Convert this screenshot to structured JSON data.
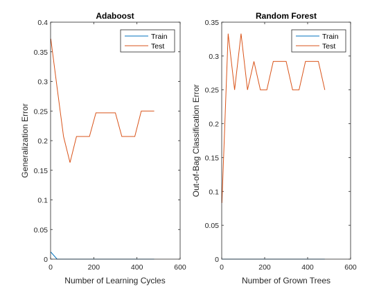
{
  "chart_data": [
    {
      "type": "line",
      "title": "Adaboost",
      "xlabel": "Number of Learning Cycles",
      "ylabel": "Generalization Error",
      "xlim": [
        0,
        600
      ],
      "ylim": [
        0,
        0.4
      ],
      "xticks": [
        0,
        200,
        400,
        600
      ],
      "yticks": [
        0,
        0.05,
        0.1,
        0.15,
        0.2,
        0.25,
        0.3,
        0.35,
        0.4
      ],
      "xtick_labels": [
        "0",
        "200",
        "400",
        "600"
      ],
      "ytick_labels": [
        "0",
        "0.05",
        "0.1",
        "0.15",
        "0.2",
        "0.25",
        "0.3",
        "0.35",
        "0.4"
      ],
      "grid": false,
      "legend_location": "top-right",
      "series": [
        {
          "name": "Train",
          "color": "#0072BD",
          "x": [
            1,
            30,
            60,
            90,
            120,
            150,
            180,
            210,
            240,
            270,
            300,
            330,
            360,
            390,
            420,
            450,
            480
          ],
          "y": [
            0.012,
            0,
            0,
            0,
            0,
            0,
            0,
            0,
            0,
            0,
            0,
            0,
            0,
            0,
            0,
            0,
            0
          ]
        },
        {
          "name": "Test",
          "color": "#D95319",
          "x": [
            1,
            30,
            60,
            90,
            120,
            150,
            180,
            210,
            240,
            270,
            300,
            330,
            360,
            390,
            420,
            450,
            480
          ],
          "y": [
            0.372,
            0.29,
            0.207,
            0.163,
            0.207,
            0.207,
            0.207,
            0.247,
            0.247,
            0.247,
            0.247,
            0.207,
            0.207,
            0.207,
            0.25,
            0.25,
            0.25
          ]
        }
      ]
    },
    {
      "type": "line",
      "title": "Random Forest",
      "xlabel": "Number of Grown Trees",
      "ylabel": "Out-of-Bag Classification Error",
      "xlim": [
        0,
        600
      ],
      "ylim": [
        0,
        0.35
      ],
      "xticks": [
        0,
        200,
        400,
        600
      ],
      "yticks": [
        0,
        0.05,
        0.1,
        0.15,
        0.2,
        0.25,
        0.3,
        0.35
      ],
      "xtick_labels": [
        "0",
        "200",
        "400",
        "600"
      ],
      "ytick_labels": [
        "0",
        "0.05",
        "0.1",
        "0.15",
        "0.2",
        "0.25",
        "0.3",
        "0.35"
      ],
      "grid": false,
      "legend_location": "top-right",
      "series": [
        {
          "name": "Train",
          "color": "#0072BD",
          "x": [
            1,
            30,
            60,
            90,
            120,
            150,
            180,
            210,
            240,
            270,
            300,
            330,
            360,
            390,
            420,
            450,
            480
          ],
          "y": [
            0,
            0,
            0,
            0,
            0,
            0,
            0,
            0,
            0,
            0,
            0,
            0,
            0,
            0,
            0,
            0,
            0
          ]
        },
        {
          "name": "Test",
          "color": "#D95319",
          "x": [
            1,
            30,
            60,
            90,
            120,
            150,
            180,
            210,
            240,
            270,
            300,
            330,
            360,
            390,
            420,
            450,
            480
          ],
          "y": [
            0.083,
            0.333,
            0.25,
            0.333,
            0.25,
            0.292,
            0.25,
            0.25,
            0.292,
            0.292,
            0.292,
            0.25,
            0.25,
            0.292,
            0.292,
            0.292,
            0.25
          ]
        }
      ]
    }
  ]
}
